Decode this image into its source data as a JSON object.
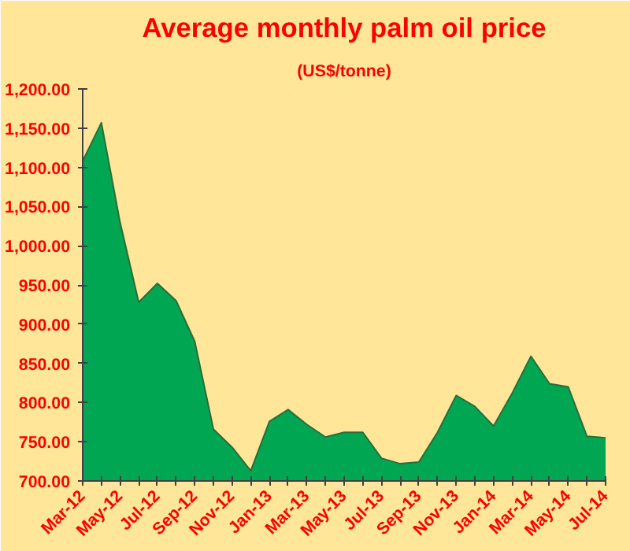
{
  "chart_data": {
    "type": "area",
    "title": "Average monthly palm oil price",
    "subtitle": "(US$/tonne)",
    "categories": [
      "Mar-12",
      null,
      "May-12",
      null,
      "Jul-12",
      null,
      "Sep-12",
      null,
      "Nov-12",
      null,
      "Jan-13",
      null,
      "Mar-13",
      null,
      "May-13",
      null,
      "Jul-13",
      null,
      "Sep-13",
      null,
      "Nov-13",
      null,
      "Jan-14",
      null,
      "Mar-14",
      null,
      "May-14",
      null,
      "Jul-14"
    ],
    "series": [
      {
        "color": "#00a651",
        "values": [
          1108,
          1157,
          1030,
          928,
          952,
          930,
          878,
          766,
          743,
          713,
          776,
          791,
          772,
          756,
          762,
          762,
          729,
          722,
          724,
          762,
          809,
          795,
          770,
          812,
          859,
          824,
          820,
          757,
          755
        ]
      }
    ],
    "ylim": [
      700,
      1200
    ],
    "yticks": [
      {
        "value": 700,
        "label": "700.00"
      },
      {
        "value": 750,
        "label": "750.00"
      },
      {
        "value": 800,
        "label": "800.00"
      },
      {
        "value": 850,
        "label": "850.00"
      },
      {
        "value": 900,
        "label": "900.00"
      },
      {
        "value": 950,
        "label": "950.00"
      },
      {
        "value": 1000,
        "label": "1,000.00"
      },
      {
        "value": 1050,
        "label": "1,050.00"
      },
      {
        "value": 1100,
        "label": "1,100.00"
      },
      {
        "value": 1150,
        "label": "1,150.00"
      },
      {
        "value": 1200,
        "label": "1,200.00"
      }
    ],
    "grid": false
  }
}
